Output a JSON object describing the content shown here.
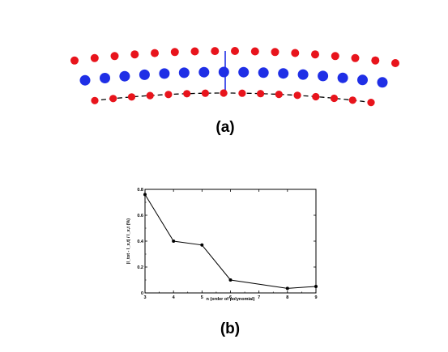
{
  "panels": {
    "a": {
      "label": "(a)"
    },
    "b": {
      "label": "(b)"
    }
  },
  "colors": {
    "outer_atoms": "#e8141c",
    "inner_atoms": "#1f2fe6",
    "bond": "#1f2fe6",
    "fit_curve": "#000000",
    "plot_line": "#000000"
  },
  "diagram": {
    "type": "curved-atomic-layers",
    "rows": [
      {
        "color": "red",
        "count": 17
      },
      {
        "color": "blue",
        "count": 16
      },
      {
        "color": "red",
        "count": 16
      }
    ],
    "fit_curve_style": "dashed",
    "bond_marker": "vertical-line-center"
  },
  "chart_data": {
    "type": "line",
    "title": "",
    "xlabel": "n (order of polynomial)",
    "ylabel": "|l_tot - l_x,t| / l_x,t (%)",
    "x": [
      3,
      4,
      5,
      6,
      8,
      9
    ],
    "values": [
      0.76,
      0.4,
      0.37,
      0.1,
      0.035,
      0.05
    ],
    "xlim": [
      3,
      9
    ],
    "ylim": [
      0,
      0.8
    ],
    "xticks": [
      "3",
      "4",
      "5",
      "6",
      "7",
      "8",
      "9"
    ],
    "yticks": [
      "0",
      "0.2",
      "0.4",
      "0.6",
      "0.8"
    ],
    "grid": false,
    "legend": "none",
    "markers": "filled-circle"
  }
}
